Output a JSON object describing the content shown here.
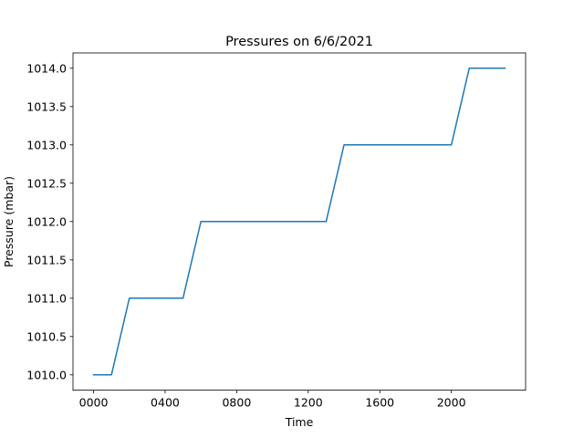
{
  "chart_data": {
    "type": "line",
    "title": "Pressures on 6/6/2021",
    "xlabel": "Time",
    "ylabel": "Pressure (mbar)",
    "x_ticks": [
      "0000",
      "0400",
      "0800",
      "1200",
      "1600",
      "2000"
    ],
    "y_ticks": [
      "1010.0",
      "1010.5",
      "1011.0",
      "1011.5",
      "1012.0",
      "1012.5",
      "1013.0",
      "1013.5",
      "1014.0"
    ],
    "xlim": [
      -115,
      2415
    ],
    "ylim": [
      1009.8,
      1014.2
    ],
    "grid": false,
    "series": [
      {
        "color": "#1f77b4",
        "x": [
          0,
          100,
          200,
          300,
          400,
          500,
          600,
          700,
          800,
          900,
          1000,
          1100,
          1200,
          1300,
          1400,
          1500,
          1600,
          1700,
          1800,
          1900,
          2000,
          2100,
          2200,
          2300
        ],
        "y": [
          1010,
          1010,
          1011,
          1011,
          1011,
          1011,
          1012,
          1012,
          1012,
          1012,
          1012,
          1012,
          1012,
          1012,
          1013,
          1013,
          1013,
          1013,
          1013,
          1013,
          1013,
          1014,
          1014,
          1014
        ]
      }
    ]
  }
}
